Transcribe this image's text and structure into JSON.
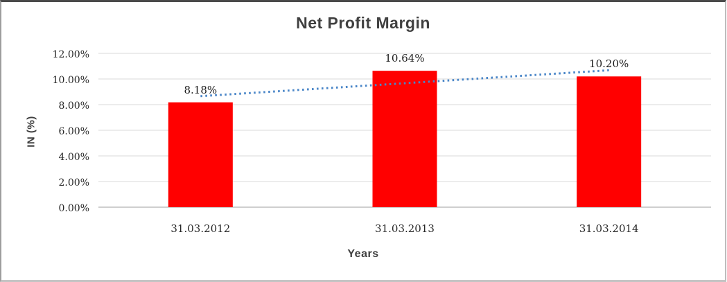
{
  "chart_data": {
    "type": "bar",
    "title": "Net Profit Margin",
    "xlabel": "Years",
    "ylabel": "IN (%)",
    "categories": [
      "31.03.2012",
      "31.03.2013",
      "31.03.2014"
    ],
    "series": [
      {
        "name": "Net Profit Margin",
        "color": "#ff0000",
        "values": [
          8.18,
          10.64,
          10.2
        ]
      }
    ],
    "data_labels": [
      "8.18%",
      "10.64%",
      "10.20%"
    ],
    "y_ticks": [
      "0.00%",
      "2.00%",
      "4.00%",
      "6.00%",
      "8.00%",
      "10.00%",
      "12.00%"
    ],
    "ylim": [
      0,
      12
    ],
    "y_step": 2,
    "grid": "horizontal",
    "legend": "none",
    "trendline": {
      "type": "linear",
      "style": "dotted",
      "color": "#4a86c8",
      "start_value": 8.66,
      "end_value": 10.68
    }
  },
  "styles": {
    "bar_color": "#ff0000",
    "gridline_color": "#d9d9d9",
    "axis_line_color": "#bfbfbf",
    "title_color": "#404040",
    "label_color": "#262626",
    "background": "#ffffff"
  }
}
